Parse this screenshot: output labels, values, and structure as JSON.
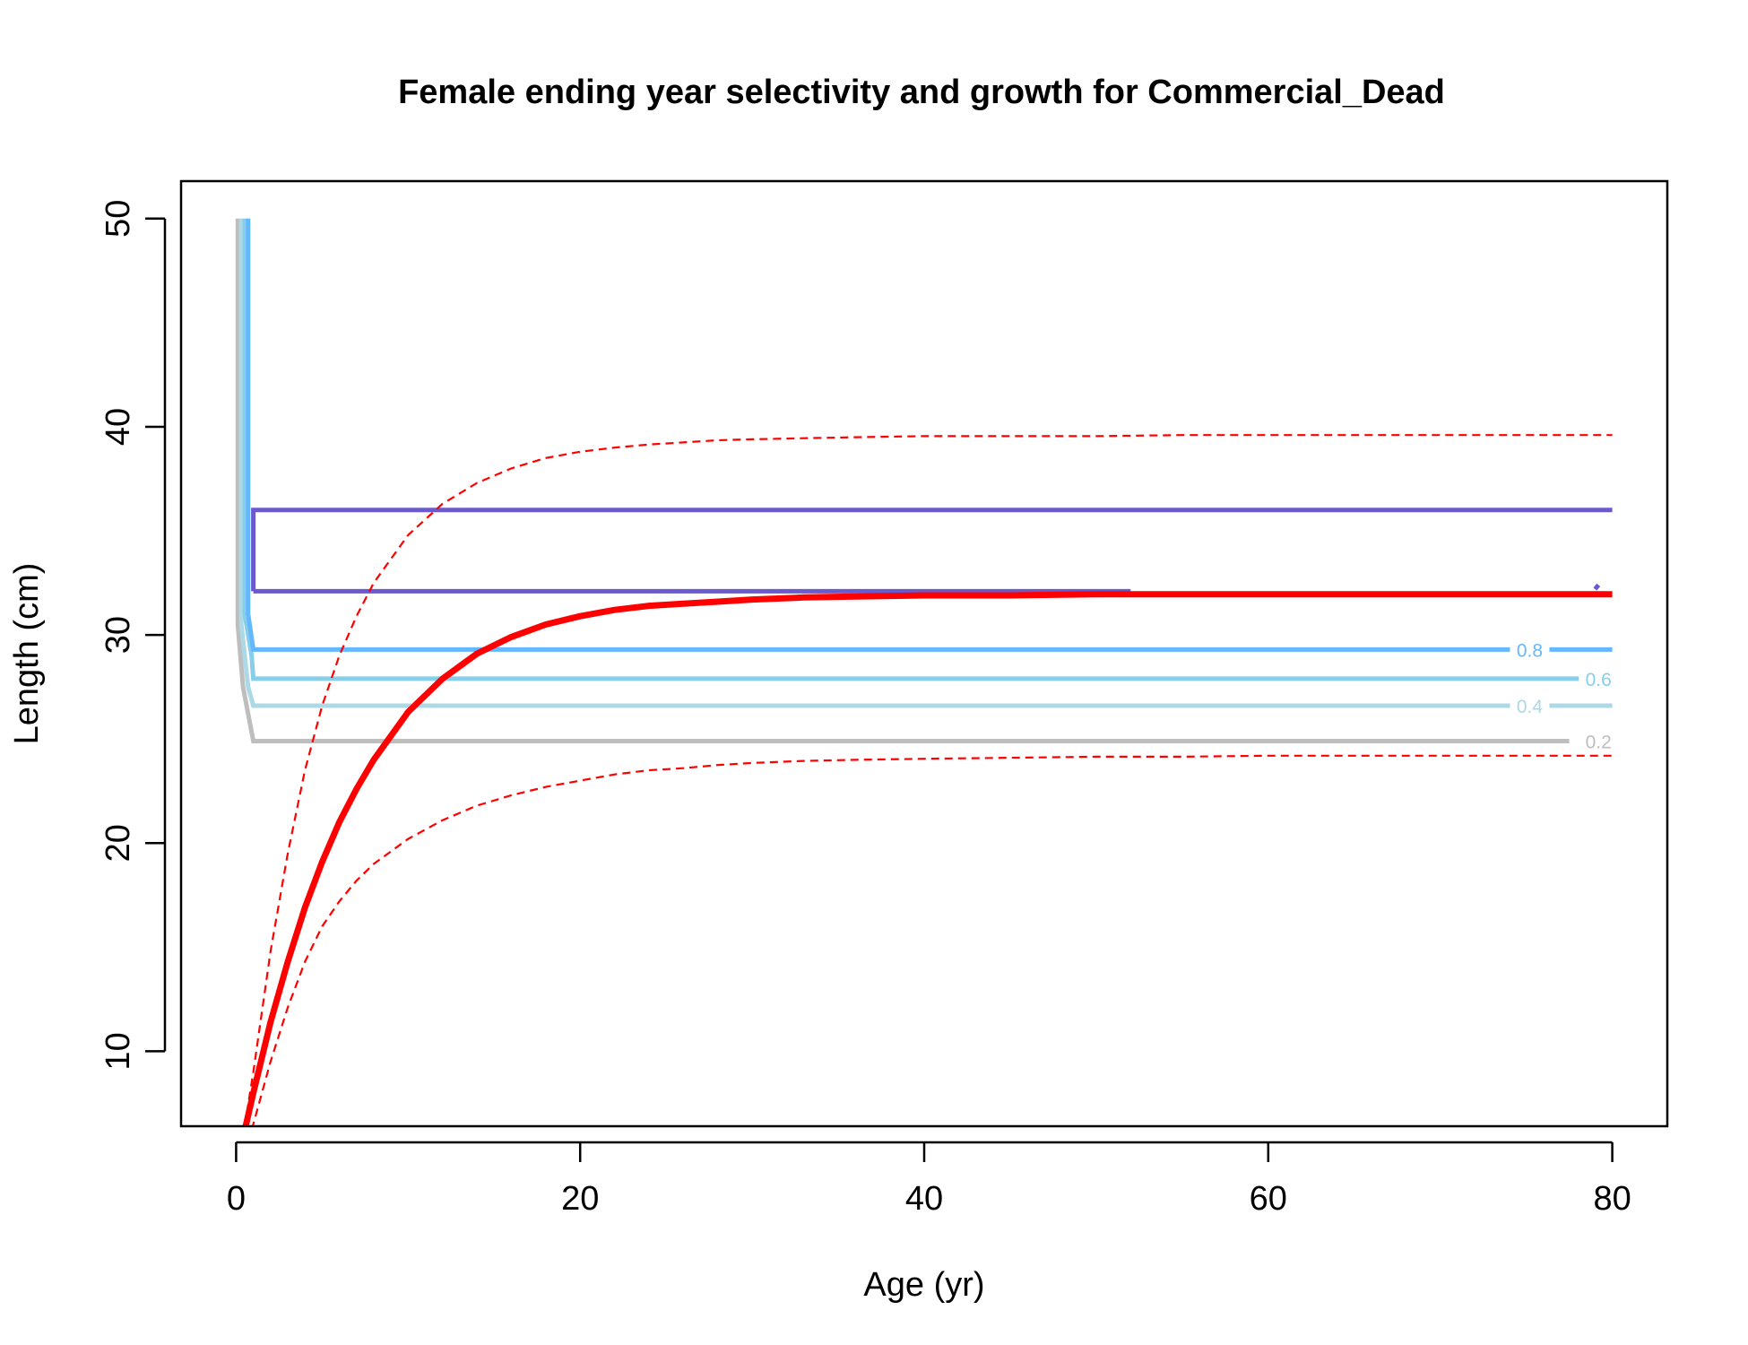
{
  "chart_data": {
    "type": "line",
    "title": "Female ending year selectivity and growth for Commercial_Dead",
    "xlabel": "Age (yr)",
    "ylabel": "Length (cm)",
    "xlim": [
      -3.2,
      83.2
    ],
    "ylim": [
      6.4,
      51.8
    ],
    "x_ticks": [
      0,
      20,
      40,
      60,
      80
    ],
    "y_ticks": [
      10,
      20,
      30,
      40,
      50
    ],
    "grid": false,
    "legend": "none",
    "growth": {
      "x": [
        0.5,
        1,
        2,
        3,
        4,
        5,
        6,
        7,
        8,
        10,
        12,
        14,
        16,
        18,
        20,
        22,
        24,
        26,
        28,
        30,
        33,
        36,
        40,
        45,
        50,
        55,
        60,
        65,
        70,
        75,
        80
      ],
      "mean": [
        6.2,
        8.0,
        11.4,
        14.3,
        16.9,
        19.1,
        21.0,
        22.6,
        24.0,
        26.3,
        27.9,
        29.1,
        29.9,
        30.5,
        30.9,
        31.2,
        31.4,
        31.5,
        31.6,
        31.7,
        31.8,
        31.85,
        31.9,
        31.9,
        31.95,
        31.95,
        31.95,
        31.95,
        31.95,
        31.95,
        31.95
      ],
      "upper": [
        6.4,
        9.0,
        14.8,
        19.5,
        23.5,
        26.6,
        29.0,
        30.9,
        32.5,
        34.8,
        36.3,
        37.3,
        38.0,
        38.5,
        38.8,
        39.0,
        39.15,
        39.25,
        39.35,
        39.4,
        39.45,
        39.5,
        39.55,
        39.55,
        39.55,
        39.6,
        39.6,
        39.6,
        39.6,
        39.6,
        39.6
      ],
      "lower": [
        5.0,
        6.5,
        9.5,
        12.1,
        14.3,
        16.0,
        17.2,
        18.2,
        19.0,
        20.2,
        21.1,
        21.8,
        22.3,
        22.7,
        23.0,
        23.3,
        23.5,
        23.6,
        23.75,
        23.85,
        23.95,
        24.0,
        24.05,
        24.1,
        24.15,
        24.15,
        24.2,
        24.2,
        24.2,
        24.2,
        24.2
      ],
      "colors": {
        "mean": "#ff0000",
        "bounds": "#ff0000"
      }
    },
    "selectivity_contours": [
      {
        "level": "0.2",
        "color": "#bebebe",
        "label": "0.2",
        "points": [
          [
            0.1,
            50
          ],
          [
            0.1,
            30.5
          ],
          [
            0.4,
            27.5
          ],
          [
            1,
            24.9
          ],
          [
            77.5,
            24.9
          ]
        ]
      },
      {
        "level": "0.4",
        "color": "#add8e6",
        "label": "0.4",
        "points": [
          [
            0.3,
            50
          ],
          [
            0.3,
            30.5
          ],
          [
            0.7,
            27.5
          ],
          [
            1,
            26.6
          ],
          [
            73.8,
            26.6
          ],
          [
            76,
            26.6
          ],
          [
            80,
            26.6
          ]
        ]
      },
      {
        "level": "0.6",
        "color": "#87ceeb",
        "label": "0.6",
        "points": [
          [
            0.5,
            50
          ],
          [
            0.5,
            31
          ],
          [
            0.9,
            29
          ],
          [
            1,
            27.9
          ],
          [
            79,
            27.9
          ]
        ]
      },
      {
        "level": "0.8",
        "color": "#63b8ff",
        "label": "0.8",
        "points": [
          [
            0.7,
            50
          ],
          [
            0.7,
            31
          ],
          [
            1,
            29.3
          ],
          [
            73.8,
            29.3
          ],
          [
            76,
            29.3
          ],
          [
            80,
            29.3
          ]
        ]
      },
      {
        "level": "1",
        "color": "#6a5acd",
        "label": "",
        "points": [
          [
            1,
            32.1
          ],
          [
            1,
            36
          ],
          [
            80,
            36
          ]
        ]
      },
      {
        "level": "1",
        "color": "#6a5acd",
        "label": "",
        "points": [
          [
            1,
            32.1
          ],
          [
            52,
            32.1
          ]
        ]
      },
      {
        "level": "1",
        "color": "#6a5acd",
        "label": "",
        "points": [
          [
            79,
            32.2
          ],
          [
            79.2,
            32.4
          ]
        ]
      }
    ],
    "contour_labels": [
      "0.8",
      "0.6",
      "0.4",
      "0.2"
    ]
  }
}
